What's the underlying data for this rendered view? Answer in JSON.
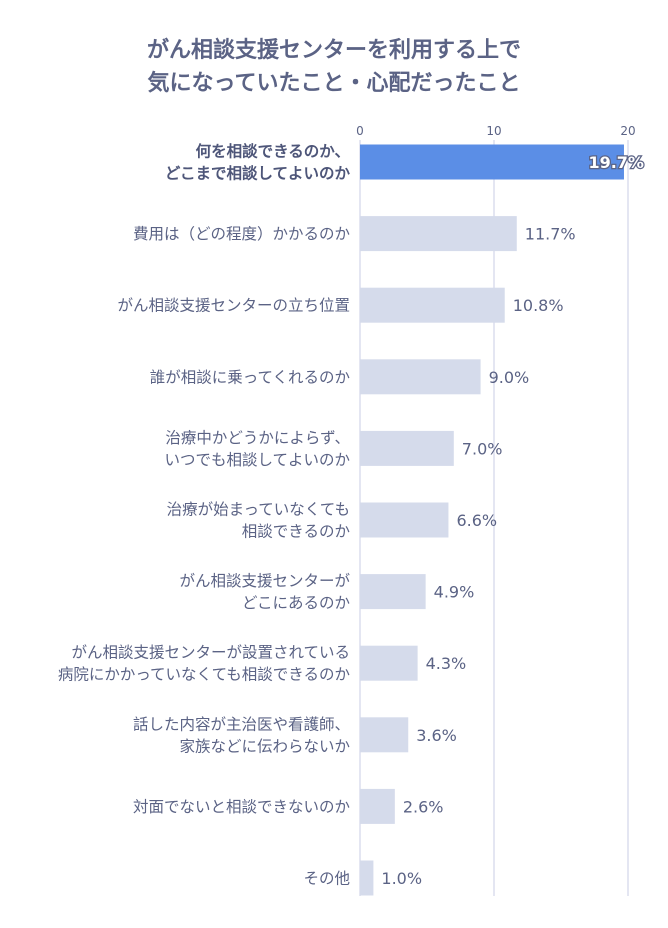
{
  "chart_data": {
    "type": "bar",
    "orientation": "horizontal",
    "title_lines": [
      "がん相談支援センターを利用する上で",
      "気になっていたこと・心配だったこと"
    ],
    "xlim": [
      0,
      20
    ],
    "xticks": [
      "0",
      "10",
      "20"
    ],
    "grid": true,
    "categories": [
      [
        "何を相談できるのか、",
        "どこまで相談してよいのか"
      ],
      [
        "費用は（どの程度）かかるのか"
      ],
      [
        "がん相談支援センターの立ち位置"
      ],
      [
        "誰が相談に乗ってくれるのか"
      ],
      [
        "治療中かどうかによらず、",
        "いつでも相談してよいのか"
      ],
      [
        "治療が始まっていなくても",
        "相談できるのか"
      ],
      [
        "がん相談支援センターが",
        "どこにあるのか"
      ],
      [
        "がん相談支援センターが設置されている",
        "病院にかかっていなくても相談できるのか"
      ],
      [
        "話した内容が主治医や看護師、",
        "家族などに伝わらないか"
      ],
      [
        "対面でないと相談できないのか"
      ],
      [
        "その他"
      ]
    ],
    "values": [
      19.7,
      11.7,
      10.8,
      9.0,
      7.0,
      6.6,
      4.9,
      4.3,
      3.6,
      2.6,
      1.0
    ],
    "value_labels": [
      "19.7%",
      "11.7%",
      "10.8%",
      "9.0%",
      "7.0%",
      "6.6%",
      "4.9%",
      "4.3%",
      "3.6%",
      "2.6%",
      "1.0%"
    ],
    "highlight_index": 0,
    "colors": {
      "highlight": "#5b8ee6",
      "bar": "#d5dbeb",
      "grid": "#c9cde4",
      "text": "#5b6385"
    }
  }
}
